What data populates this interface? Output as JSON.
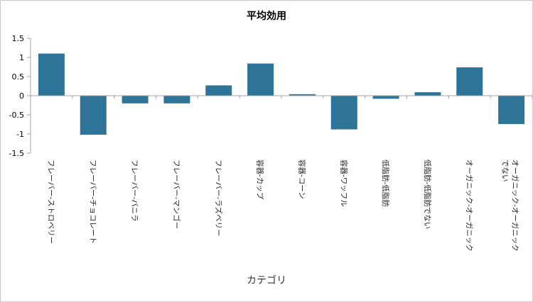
{
  "chart_data": {
    "type": "bar",
    "title": "平均効用",
    "xlabel": "カテゴリ",
    "ylabel": "",
    "ylim": [
      -1.5,
      1.5
    ],
    "yticks": [
      "1.5",
      "1",
      "0.5",
      "0",
      "-0.5",
      "-1",
      "-1.5"
    ],
    "categories": [
      "フレーバー-ストロベリー",
      "フレーバー-チョコレート",
      "フレーバー-バニラ",
      "フレーバー-マンゴー",
      "フレーバー-ラズベリー",
      "容器-カップ",
      "容器-コーン",
      "容器-ワッフル",
      "低脂肪-低脂肪",
      "低脂肪-低脂肪でない",
      "オーガニック-オーガニック",
      "オーガニック-オーガニックでない"
    ],
    "values": [
      1.1,
      -1.02,
      -0.2,
      -0.2,
      0.27,
      0.84,
      0.04,
      -0.88,
      -0.08,
      0.09,
      0.74,
      -0.74
    ],
    "grid": false,
    "legend": "none",
    "bar_color": "#2e7398"
  }
}
